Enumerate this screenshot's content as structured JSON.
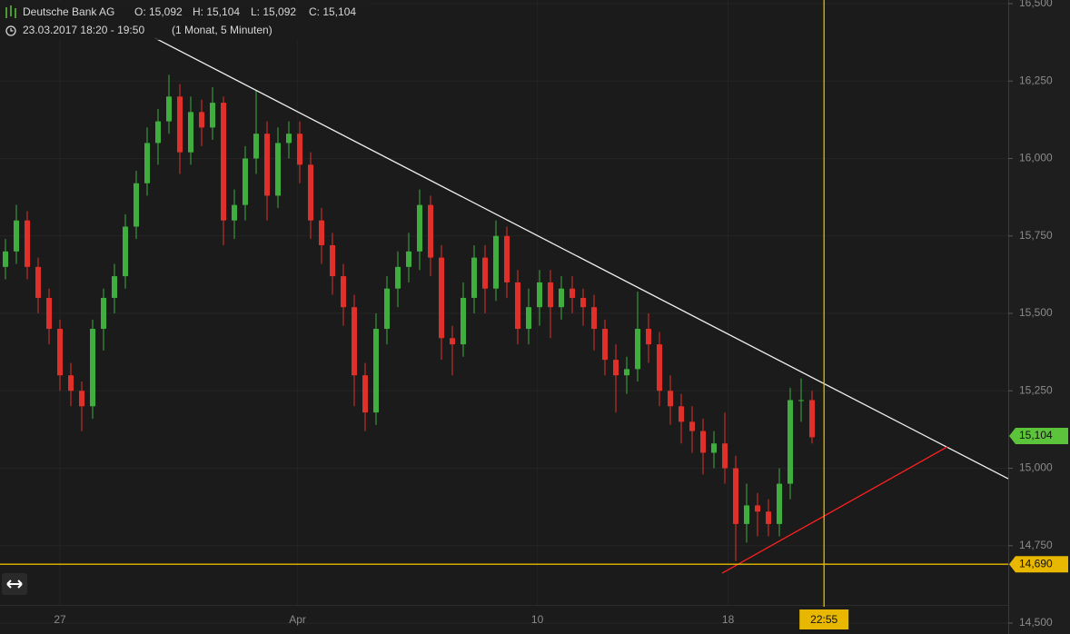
{
  "header": {
    "symbol": "Deutsche Bank AG",
    "open": "O: 15,092",
    "high": "H: 15,104",
    "low": "L: 15,092",
    "close": "C: 15,104",
    "time": "23.03.2017 18:20 - 19:50",
    "period": "(1 Monat, 5 Minuten)"
  },
  "chart_data": {
    "type": "candlestick",
    "up_color": "#3fae3f",
    "down_color": "#e0302a",
    "x": [
      0,
      1,
      2,
      3,
      4,
      5,
      6,
      7,
      8,
      9,
      10,
      11,
      12,
      13,
      14,
      15,
      16,
      17,
      18,
      19,
      20,
      21,
      22,
      23,
      24,
      25,
      26,
      27,
      28,
      29,
      30,
      31,
      32,
      33,
      34,
      35,
      36,
      37,
      38,
      39,
      40,
      41,
      42,
      43,
      44,
      45,
      46,
      47,
      48,
      49,
      50,
      51,
      52,
      53,
      54,
      55,
      56,
      57,
      58,
      59,
      60,
      61,
      62,
      63,
      64,
      65,
      66,
      67,
      68,
      69,
      70,
      71,
      72,
      73,
      74
    ],
    "open": [
      15.65,
      15.7,
      15.8,
      15.65,
      15.55,
      15.45,
      15.3,
      15.25,
      15.2,
      15.45,
      15.55,
      15.62,
      15.78,
      15.92,
      16.05,
      16.12,
      16.2,
      16.02,
      16.15,
      16.1,
      16.18,
      15.8,
      15.85,
      16.0,
      16.08,
      15.88,
      16.05,
      16.08,
      15.98,
      15.8,
      15.72,
      15.62,
      15.52,
      15.3,
      15.18,
      15.45,
      15.58,
      15.65,
      15.7,
      15.85,
      15.68,
      15.42,
      15.4,
      15.55,
      15.68,
      15.58,
      15.75,
      15.6,
      15.45,
      15.52,
      15.6,
      15.52,
      15.58,
      15.55,
      15.52,
      15.45,
      15.35,
      15.3,
      15.32,
      15.45,
      15.4,
      15.25,
      15.2,
      15.15,
      15.12,
      15.05,
      15.08,
      15.0,
      14.82,
      14.88,
      14.86,
      14.82,
      14.95,
      15.22,
      15.22
    ],
    "high": [
      15.74,
      15.85,
      15.83,
      15.68,
      15.58,
      15.48,
      15.34,
      15.28,
      15.48,
      15.58,
      15.66,
      15.82,
      15.96,
      16.1,
      16.16,
      16.27,
      16.24,
      16.2,
      16.19,
      16.23,
      16.2,
      15.9,
      16.04,
      16.22,
      16.12,
      16.1,
      16.12,
      16.12,
      16.02,
      15.84,
      15.76,
      15.66,
      15.56,
      15.34,
      15.5,
      15.62,
      15.7,
      15.76,
      15.9,
      15.88,
      15.72,
      15.46,
      15.6,
      15.72,
      15.72,
      15.8,
      15.78,
      15.64,
      15.58,
      15.64,
      15.64,
      15.62,
      15.62,
      15.58,
      15.56,
      15.48,
      15.4,
      15.36,
      15.57,
      15.5,
      15.44,
      15.3,
      15.24,
      15.2,
      15.16,
      15.12,
      15.18,
      15.04,
      14.95,
      14.92,
      14.9,
      15.0,
      15.26,
      15.29,
      15.25
    ],
    "low": [
      15.61,
      15.66,
      15.61,
      15.5,
      15.4,
      15.25,
      15.2,
      15.12,
      15.16,
      15.38,
      15.5,
      15.58,
      15.74,
      15.88,
      15.98,
      16.08,
      15.95,
      15.98,
      16.04,
      16.06,
      15.72,
      15.74,
      15.8,
      15.95,
      15.8,
      15.84,
      16.0,
      15.92,
      15.74,
      15.66,
      15.56,
      15.46,
      15.2,
      15.12,
      15.14,
      15.4,
      15.52,
      15.6,
      15.64,
      15.62,
      15.35,
      15.3,
      15.36,
      15.5,
      15.5,
      15.54,
      15.55,
      15.4,
      15.4,
      15.46,
      15.42,
      15.48,
      15.5,
      15.46,
      15.38,
      15.3,
      15.18,
      15.24,
      15.28,
      15.34,
      15.2,
      15.14,
      15.08,
      15.05,
      14.98,
      15.0,
      14.95,
      14.7,
      14.76,
      14.78,
      14.78,
      14.78,
      14.9,
      15.15,
      15.08
    ],
    "close": [
      15.7,
      15.8,
      15.65,
      15.55,
      15.45,
      15.3,
      15.25,
      15.2,
      15.45,
      15.55,
      15.62,
      15.78,
      15.92,
      16.05,
      16.12,
      16.2,
      16.02,
      16.15,
      16.1,
      16.18,
      15.8,
      15.85,
      16.0,
      16.08,
      15.88,
      16.05,
      16.08,
      15.98,
      15.8,
      15.72,
      15.62,
      15.52,
      15.3,
      15.18,
      15.45,
      15.58,
      15.65,
      15.7,
      15.85,
      15.68,
      15.42,
      15.4,
      15.55,
      15.68,
      15.58,
      15.75,
      15.6,
      15.45,
      15.52,
      15.6,
      15.52,
      15.58,
      15.55,
      15.52,
      15.45,
      15.35,
      15.3,
      15.32,
      15.45,
      15.4,
      15.25,
      15.2,
      15.15,
      15.12,
      15.05,
      15.08,
      15.0,
      14.82,
      14.88,
      14.86,
      14.82,
      14.95,
      15.22,
      15.22,
      15.1
    ],
    "xlim": [
      -0.5,
      92
    ],
    "xticks": [
      {
        "value": 5,
        "label": "27"
      },
      {
        "value": 26.8,
        "label": "Apr"
      },
      {
        "value": 48.8,
        "label": "10"
      },
      {
        "value": 66.3,
        "label": "18"
      }
    ],
    "ylim": [
      14.5,
      16.5
    ],
    "yticks": [
      {
        "value": 14.5,
        "label": "14,500"
      },
      {
        "value": 14.75,
        "label": "14,750"
      },
      {
        "value": 15,
        "label": "15,000"
      },
      {
        "value": 15.25,
        "label": "15,250"
      },
      {
        "value": 15.5,
        "label": "15,500"
      },
      {
        "value": 15.75,
        "label": "15,750"
      },
      {
        "value": 16,
        "label": "16,000"
      },
      {
        "value": 16.25,
        "label": "16,250"
      },
      {
        "value": 16.5,
        "label": "16,500"
      }
    ],
    "grid": true,
    "lines": [
      {
        "x": [
          13.7,
          92
        ],
        "y": [
          16.389,
          14.966
        ],
        "color": "#f0f0f0"
      },
      {
        "x": [
          65.75,
          86.4
        ],
        "y": [
          14.661,
          15.069
        ],
        "color": "#ff2020"
      }
    ],
    "last_price": {
      "value": 15.104,
      "label": "15,104",
      "color": "#5cc43a"
    },
    "hline": {
      "value": 14.69,
      "label": "14,690",
      "color": "#e8b800"
    },
    "crosshair": {
      "value": 75.1,
      "label": "22:55",
      "color": "#e8b800"
    }
  }
}
